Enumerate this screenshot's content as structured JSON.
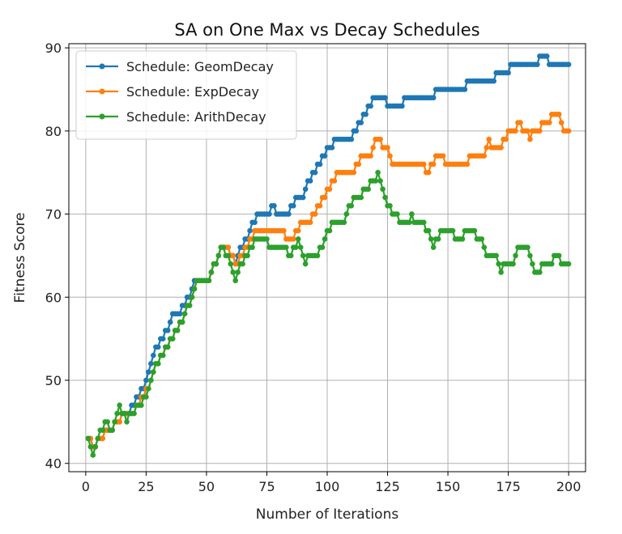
{
  "chart_data": {
    "type": "line",
    "title": "SA on One Max vs Decay Schedules",
    "xlabel": "Number of Iterations",
    "ylabel": "Fitness Score",
    "xlim": [
      -7,
      207
    ],
    "ylim": [
      39,
      90.5
    ],
    "xticks": [
      0,
      25,
      50,
      75,
      100,
      125,
      150,
      175,
      200
    ],
    "yticks": [
      40,
      50,
      60,
      70,
      80,
      90
    ],
    "grid": true,
    "legend_position": "top-left",
    "marker": "circle",
    "series": [
      {
        "name": "Schedule: GeomDecay",
        "color": "#1f77b4",
        "points": [
          [
            1,
            43
          ],
          [
            3,
            42
          ],
          [
            5,
            43
          ],
          [
            8,
            44
          ],
          [
            12,
            45
          ],
          [
            15,
            46
          ],
          [
            18,
            46
          ],
          [
            19,
            47
          ],
          [
            21,
            48
          ],
          [
            23,
            49
          ],
          [
            25,
            50
          ],
          [
            26,
            51
          ],
          [
            27,
            52
          ],
          [
            28,
            53
          ],
          [
            29,
            54
          ],
          [
            31,
            55
          ],
          [
            33,
            56
          ],
          [
            35,
            57
          ],
          [
            36,
            58
          ],
          [
            39,
            58
          ],
          [
            40,
            59
          ],
          [
            42,
            60
          ],
          [
            44,
            61
          ],
          [
            45,
            62
          ],
          [
            50,
            62
          ],
          [
            52,
            63
          ],
          [
            53,
            64
          ],
          [
            55,
            65
          ],
          [
            56,
            66
          ],
          [
            59,
            66
          ],
          [
            60,
            65
          ],
          [
            62,
            64
          ],
          [
            63,
            65
          ],
          [
            64,
            66
          ],
          [
            66,
            67
          ],
          [
            68,
            68
          ],
          [
            69,
            69
          ],
          [
            71,
            70
          ],
          [
            75,
            70
          ],
          [
            77,
            71
          ],
          [
            79,
            70
          ],
          [
            84,
            70
          ],
          [
            85,
            71
          ],
          [
            87,
            72
          ],
          [
            89,
            72
          ],
          [
            91,
            73
          ],
          [
            92,
            74
          ],
          [
            94,
            75
          ],
          [
            96,
            76
          ],
          [
            98,
            77
          ],
          [
            100,
            78
          ],
          [
            103,
            79
          ],
          [
            109,
            79
          ],
          [
            111,
            80
          ],
          [
            113,
            81
          ],
          [
            115,
            82
          ],
          [
            117,
            83
          ],
          [
            119,
            84
          ],
          [
            124,
            84
          ],
          [
            125,
            83
          ],
          [
            131,
            83
          ],
          [
            132,
            84
          ],
          [
            140,
            84
          ],
          [
            141,
            84
          ],
          [
            145,
            85
          ],
          [
            157,
            85
          ],
          [
            158,
            86
          ],
          [
            169,
            86
          ],
          [
            170,
            87
          ],
          [
            175,
            87
          ],
          [
            176,
            88
          ],
          [
            187,
            88
          ],
          [
            188,
            89
          ],
          [
            191,
            89
          ],
          [
            192,
            88
          ],
          [
            200,
            88
          ]
        ]
      },
      {
        "name": "Schedule: ExpDecay",
        "color": "#ff7f0e",
        "points": [
          [
            1,
            43
          ],
          [
            3,
            42
          ],
          [
            5,
            43
          ],
          [
            8,
            44
          ],
          [
            12,
            45
          ],
          [
            15,
            46
          ],
          [
            18,
            46
          ],
          [
            21,
            47
          ],
          [
            23,
            48
          ],
          [
            25,
            49
          ],
          [
            27,
            50
          ],
          [
            28,
            51
          ],
          [
            29,
            52
          ],
          [
            31,
            53
          ],
          [
            33,
            54
          ],
          [
            35,
            55
          ],
          [
            37,
            56
          ],
          [
            39,
            57
          ],
          [
            41,
            58
          ],
          [
            42,
            59
          ],
          [
            44,
            60
          ],
          [
            45,
            61
          ],
          [
            46,
            62
          ],
          [
            50,
            62
          ],
          [
            52,
            63
          ],
          [
            53,
            64
          ],
          [
            55,
            65
          ],
          [
            56,
            66
          ],
          [
            59,
            66
          ],
          [
            60,
            65
          ],
          [
            62,
            64
          ],
          [
            63,
            64
          ],
          [
            64,
            65
          ],
          [
            66,
            66
          ],
          [
            68,
            67
          ],
          [
            70,
            68
          ],
          [
            82,
            68
          ],
          [
            83,
            67
          ],
          [
            85,
            67
          ],
          [
            87,
            68
          ],
          [
            89,
            69
          ],
          [
            93,
            69
          ],
          [
            94,
            70
          ],
          [
            96,
            71
          ],
          [
            98,
            72
          ],
          [
            100,
            73
          ],
          [
            102,
            74
          ],
          [
            104,
            75
          ],
          [
            111,
            75
          ],
          [
            112,
            76
          ],
          [
            114,
            77
          ],
          [
            118,
            77
          ],
          [
            119,
            78
          ],
          [
            120,
            79
          ],
          [
            122,
            79
          ],
          [
            123,
            78
          ],
          [
            126,
            77
          ],
          [
            127,
            76
          ],
          [
            140,
            76
          ],
          [
            141,
            75
          ],
          [
            143,
            76
          ],
          [
            145,
            77
          ],
          [
            148,
            77
          ],
          [
            149,
            76
          ],
          [
            158,
            76
          ],
          [
            159,
            77
          ],
          [
            165,
            77
          ],
          [
            166,
            78
          ],
          [
            167,
            79
          ],
          [
            168,
            78
          ],
          [
            172,
            78
          ],
          [
            173,
            79
          ],
          [
            175,
            80
          ],
          [
            178,
            80
          ],
          [
            179,
            81
          ],
          [
            181,
            80
          ],
          [
            183,
            80
          ],
          [
            184,
            79
          ],
          [
            185,
            80
          ],
          [
            188,
            80
          ],
          [
            189,
            81
          ],
          [
            192,
            81
          ],
          [
            193,
            82
          ],
          [
            196,
            82
          ],
          [
            197,
            81
          ],
          [
            198,
            80
          ],
          [
            200,
            80
          ]
        ]
      },
      {
        "name": "Schedule: ArithDecay",
        "color": "#2ca02c",
        "points": [
          [
            1,
            43
          ],
          [
            2,
            42
          ],
          [
            3,
            41
          ],
          [
            4,
            42
          ],
          [
            5,
            43
          ],
          [
            6,
            44
          ],
          [
            8,
            45
          ],
          [
            10,
            44
          ],
          [
            12,
            45
          ],
          [
            13,
            46
          ],
          [
            14,
            47
          ],
          [
            15,
            46
          ],
          [
            17,
            45
          ],
          [
            18,
            46
          ],
          [
            20,
            46
          ],
          [
            21,
            47
          ],
          [
            23,
            47
          ],
          [
            24,
            48
          ],
          [
            26,
            49
          ],
          [
            27,
            50
          ],
          [
            28,
            51
          ],
          [
            29,
            52
          ],
          [
            31,
            53
          ],
          [
            33,
            54
          ],
          [
            35,
            55
          ],
          [
            37,
            56
          ],
          [
            39,
            57
          ],
          [
            41,
            58
          ],
          [
            42,
            59
          ],
          [
            44,
            60
          ],
          [
            45,
            61
          ],
          [
            46,
            62
          ],
          [
            50,
            62
          ],
          [
            52,
            63
          ],
          [
            53,
            64
          ],
          [
            55,
            65
          ],
          [
            56,
            66
          ],
          [
            58,
            65
          ],
          [
            60,
            64
          ],
          [
            61,
            63
          ],
          [
            62,
            62
          ],
          [
            63,
            63
          ],
          [
            64,
            64
          ],
          [
            66,
            65
          ],
          [
            68,
            66
          ],
          [
            70,
            67
          ],
          [
            75,
            67
          ],
          [
            76,
            66
          ],
          [
            83,
            66
          ],
          [
            84,
            65
          ],
          [
            86,
            66
          ],
          [
            88,
            67
          ],
          [
            89,
            66
          ],
          [
            90,
            65
          ],
          [
            91,
            64
          ],
          [
            92,
            65
          ],
          [
            96,
            65
          ],
          [
            97,
            66
          ],
          [
            99,
            67
          ],
          [
            100,
            68
          ],
          [
            102,
            69
          ],
          [
            107,
            69
          ],
          [
            108,
            70
          ],
          [
            109,
            71
          ],
          [
            111,
            72
          ],
          [
            114,
            72
          ],
          [
            115,
            73
          ],
          [
            117,
            73
          ],
          [
            118,
            74
          ],
          [
            120,
            74
          ],
          [
            121,
            75
          ],
          [
            122,
            74
          ],
          [
            123,
            73
          ],
          [
            124,
            72
          ],
          [
            125,
            71
          ],
          [
            127,
            70
          ],
          [
            129,
            70
          ],
          [
            130,
            69
          ],
          [
            134,
            69
          ],
          [
            135,
            70
          ],
          [
            136,
            69
          ],
          [
            140,
            69
          ],
          [
            141,
            68
          ],
          [
            143,
            67
          ],
          [
            144,
            66
          ],
          [
            145,
            67
          ],
          [
            147,
            68
          ],
          [
            152,
            68
          ],
          [
            153,
            67
          ],
          [
            156,
            67
          ],
          [
            157,
            68
          ],
          [
            161,
            68
          ],
          [
            162,
            67
          ],
          [
            164,
            67
          ],
          [
            165,
            66
          ],
          [
            166,
            65
          ],
          [
            170,
            65
          ],
          [
            171,
            64
          ],
          [
            172,
            63
          ],
          [
            173,
            64
          ],
          [
            177,
            64
          ],
          [
            178,
            65
          ],
          [
            179,
            66
          ],
          [
            183,
            66
          ],
          [
            184,
            65
          ],
          [
            185,
            64
          ],
          [
            186,
            63
          ],
          [
            188,
            63
          ],
          [
            189,
            64
          ],
          [
            193,
            64
          ],
          [
            194,
            65
          ],
          [
            196,
            65
          ],
          [
            197,
            64
          ],
          [
            200,
            64
          ]
        ]
      }
    ]
  }
}
